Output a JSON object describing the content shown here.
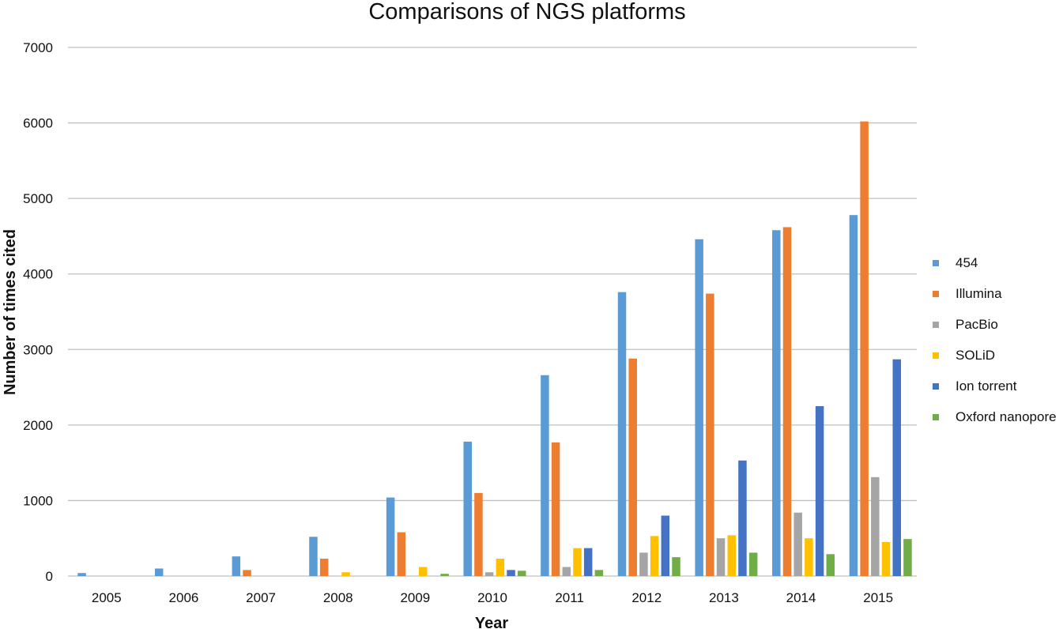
{
  "chart_data": {
    "type": "bar",
    "title": "Comparisons of NGS platforms",
    "xlabel": "Year",
    "ylabel": "Number of times cited",
    "ylim": [
      0,
      7000
    ],
    "yticks": [
      0,
      1000,
      2000,
      3000,
      4000,
      5000,
      6000,
      7000
    ],
    "grid": true,
    "legend_position": "right",
    "categories": [
      "2005",
      "2006",
      "2007",
      "2008",
      "2009",
      "2010",
      "2011",
      "2012",
      "2013",
      "2014",
      "2015"
    ],
    "series": [
      {
        "name": "454",
        "color": "#5b9bd5",
        "values": [
          40,
          100,
          260,
          520,
          1040,
          1780,
          2660,
          3760,
          4460,
          4580,
          4780
        ]
      },
      {
        "name": "Illumina",
        "color": "#ed7d31",
        "values": [
          0,
          0,
          80,
          230,
          580,
          1100,
          1770,
          2880,
          3740,
          4620,
          6020
        ]
      },
      {
        "name": "PacBio",
        "color": "#a5a5a5",
        "values": [
          0,
          0,
          0,
          0,
          0,
          50,
          120,
          310,
          500,
          840,
          1310
        ]
      },
      {
        "name": "SOLiD",
        "color": "#ffc000",
        "values": [
          0,
          0,
          0,
          50,
          120,
          230,
          370,
          530,
          540,
          500,
          450
        ]
      },
      {
        "name": "Ion torrent",
        "color": "#4472c4",
        "values": [
          0,
          0,
          0,
          0,
          0,
          80,
          370,
          800,
          1530,
          2250,
          2870
        ]
      },
      {
        "name": "Oxford nanopore",
        "color": "#70ad47",
        "values": [
          0,
          0,
          0,
          0,
          30,
          70,
          80,
          250,
          310,
          290,
          490
        ]
      }
    ]
  }
}
